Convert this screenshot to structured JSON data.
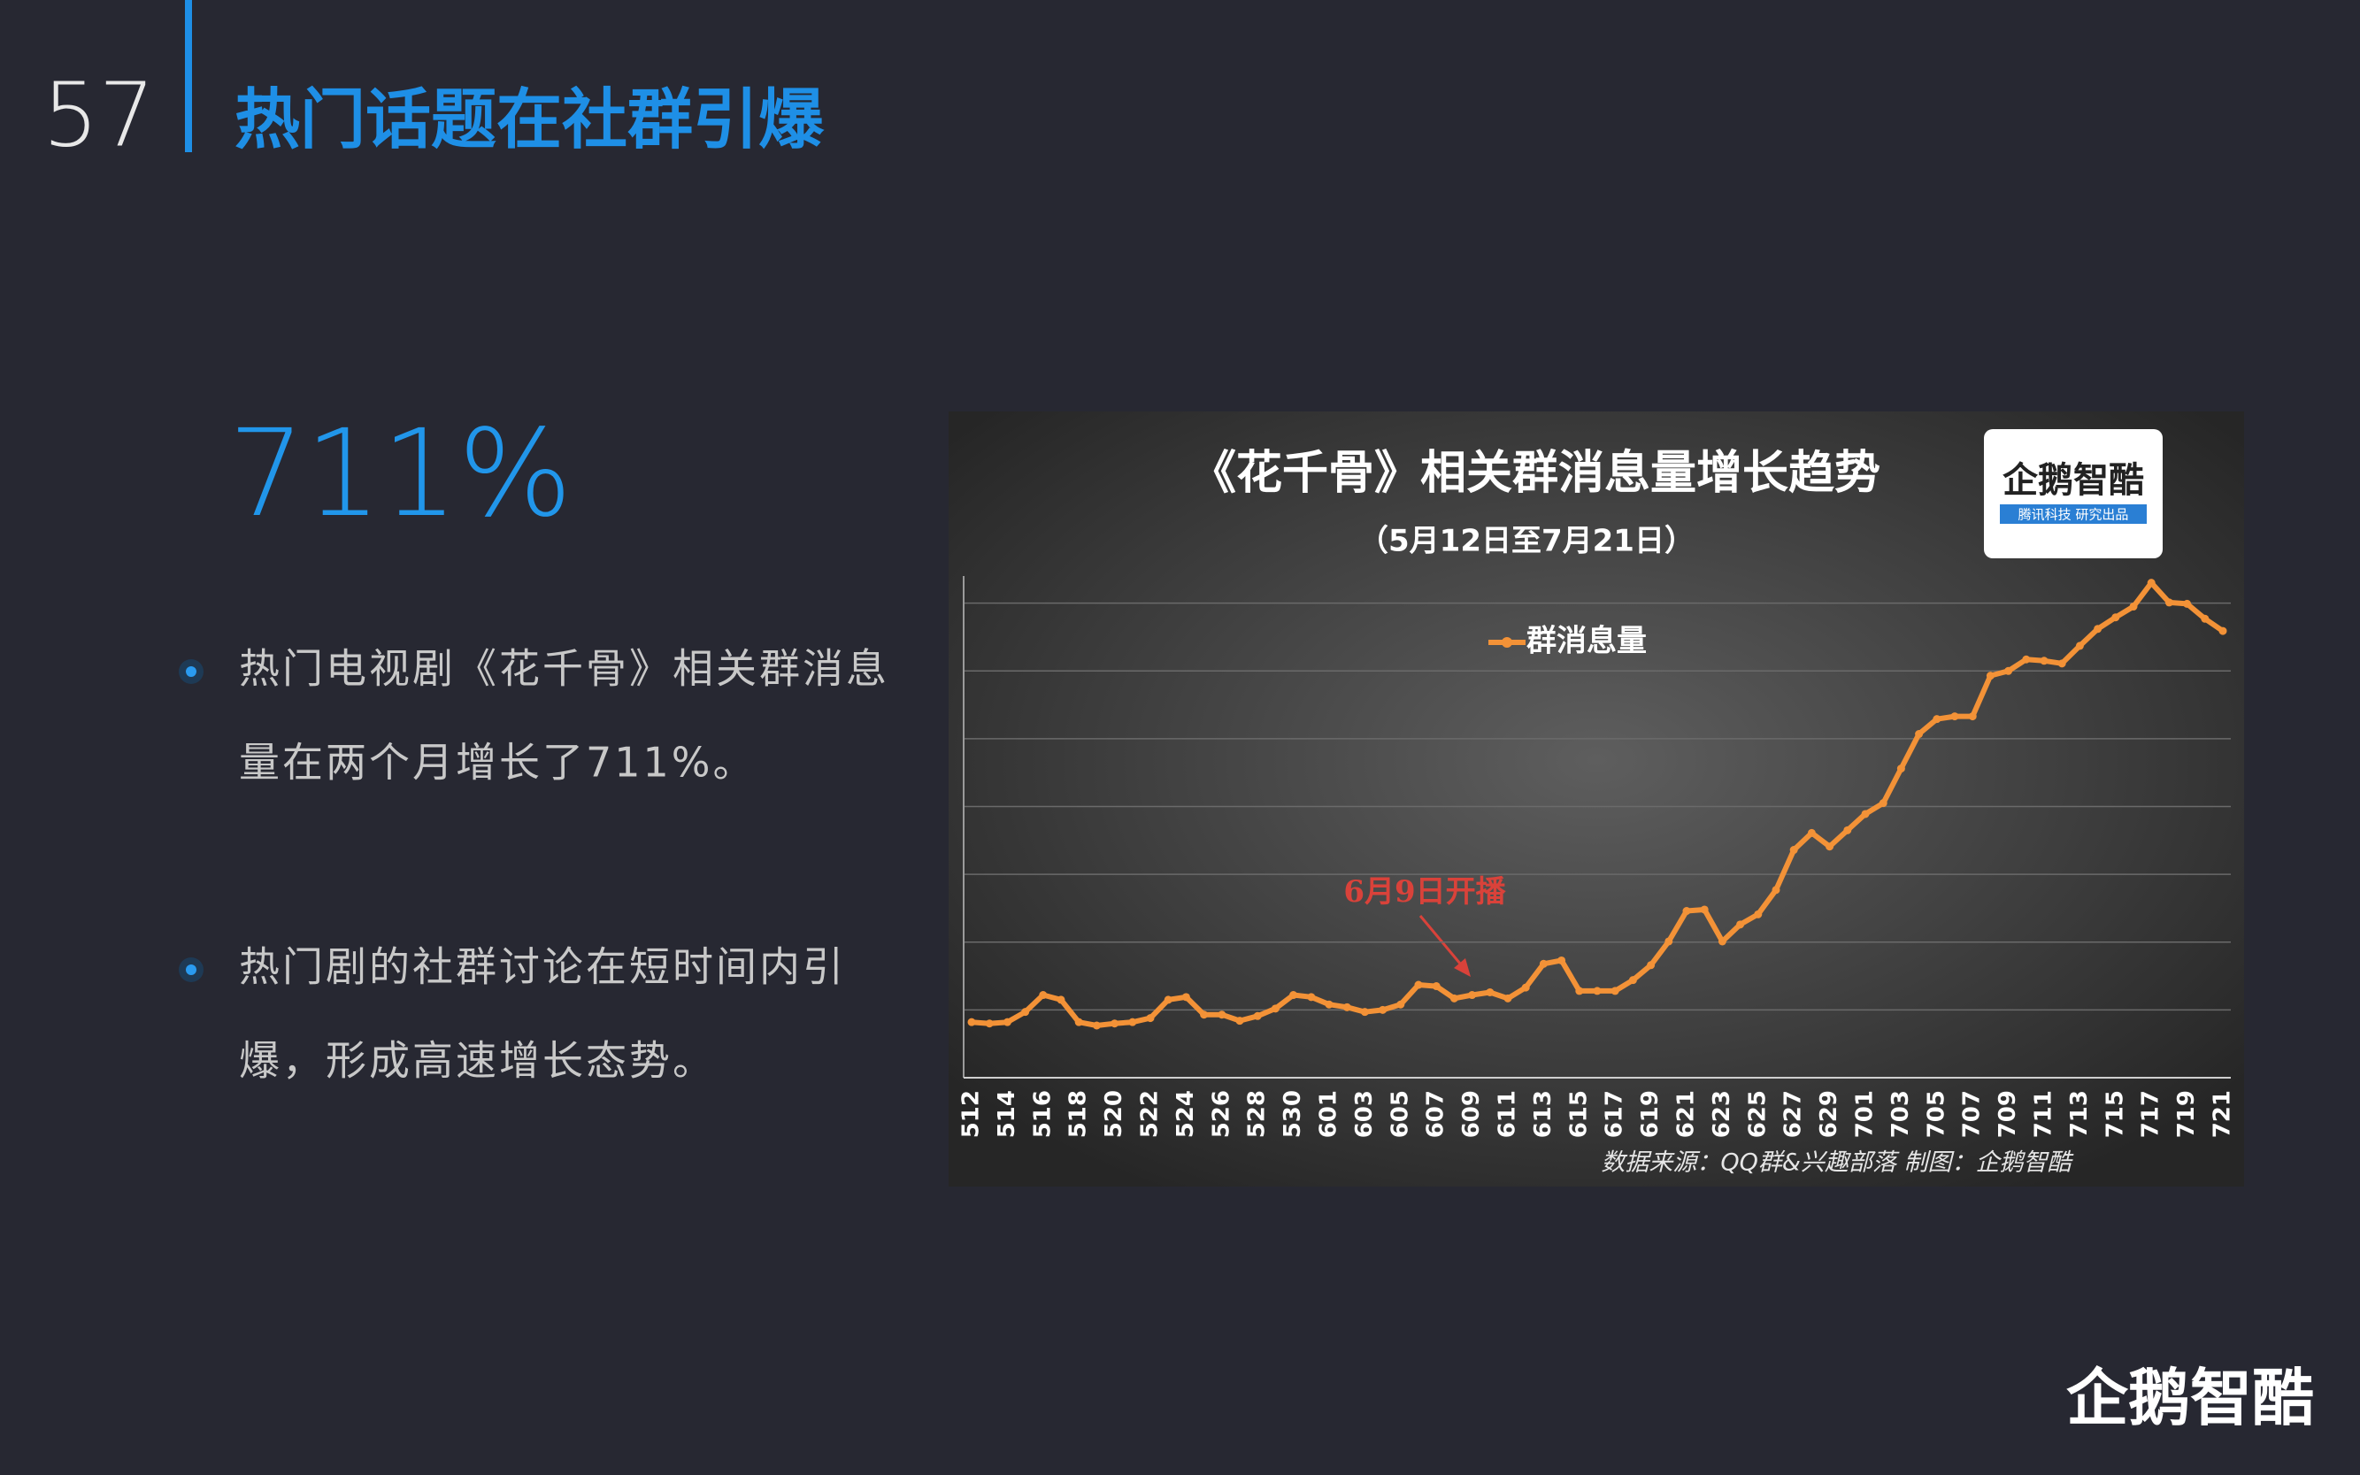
{
  "slide": {
    "number": "57",
    "title": "热门话题在社群引爆",
    "highlight": "711%",
    "bullets": [
      [
        "热门电视剧《花千骨》相关群消息",
        "量在两个月增长了711%。"
      ],
      [
        "热门剧的社群讨论在短时间内引",
        "爆，形成高速增长态势。"
      ]
    ],
    "footer_logo": "企鹅智酷"
  },
  "chart_data": {
    "type": "line",
    "title": "《花千骨》相关群消息量增长趋势",
    "subtitle": "（5月12日至7月21日）",
    "logo": "企鹅智酷",
    "logo_caption": "腾讯科技  研究出品",
    "annotation": "6月9日开播",
    "source": "数据来源：QQ群&兴趣部落    制图：企鹅智酷",
    "categories": [
      "512",
      null,
      "514",
      null,
      "516",
      null,
      "518",
      null,
      "520",
      null,
      "522",
      null,
      "524",
      null,
      "526",
      null,
      "528",
      null,
      "530",
      null,
      "601",
      null,
      "603",
      null,
      "605",
      null,
      "607",
      null,
      "609",
      null,
      "611",
      null,
      "613",
      null,
      "615",
      null,
      "617",
      null,
      "619",
      null,
      "621",
      null,
      "623",
      null,
      "625",
      null,
      "627",
      null,
      "629",
      null,
      "701",
      null,
      "703",
      null,
      "705",
      null,
      "707",
      null,
      "709",
      null,
      "711",
      null,
      "713",
      null,
      "715",
      null,
      "717",
      null,
      "719",
      null,
      "721"
    ],
    "series": [
      {
        "name": "群消息量",
        "color": "#f39237",
        "values": [
          0.82,
          0.8,
          0.82,
          0.97,
          1.22,
          1.15,
          0.82,
          0.77,
          0.8,
          0.82,
          0.88,
          1.15,
          1.19,
          0.93,
          0.93,
          0.84,
          0.91,
          1.02,
          1.22,
          1.19,
          1.08,
          1.04,
          0.97,
          1.0,
          1.08,
          1.37,
          1.35,
          1.17,
          1.22,
          1.26,
          1.17,
          1.33,
          1.68,
          1.73,
          1.28,
          1.28,
          1.28,
          1.44,
          1.66,
          2.01,
          2.46,
          2.48,
          2.01,
          2.26,
          2.41,
          2.77,
          3.36,
          3.61,
          3.41,
          3.65,
          3.89,
          4.05,
          4.56,
          5.07,
          5.29,
          5.33,
          5.33,
          5.93,
          6.0,
          6.17,
          6.15,
          6.11,
          6.37,
          6.62,
          6.79,
          6.95,
          7.3,
          7.01,
          6.99,
          6.77,
          6.59
        ]
      }
    ],
    "ylim": [
      0,
      7.4
    ],
    "yticks": [
      0,
      1,
      2,
      3,
      4,
      5,
      6,
      7
    ],
    "grid": true
  }
}
